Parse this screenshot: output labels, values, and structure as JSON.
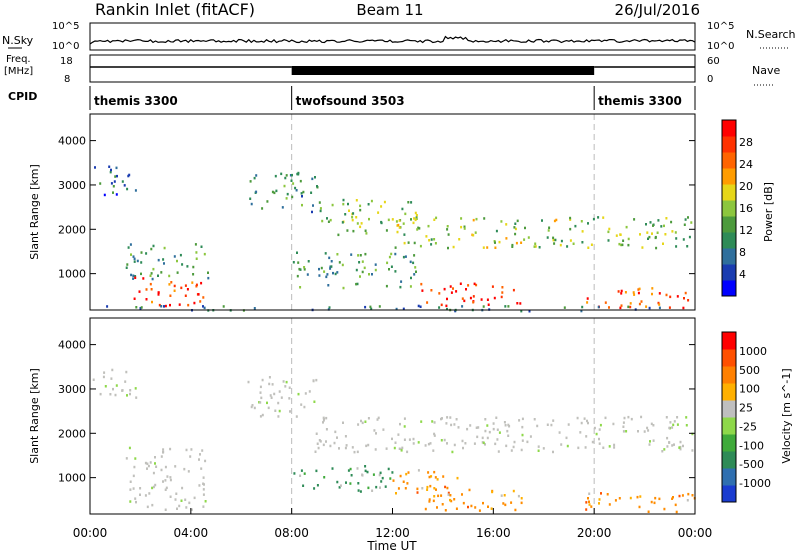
{
  "header": {
    "station": "Rankin Inlet (fitACF)",
    "beam": "Beam 11",
    "date": "26/Jul/2016"
  },
  "panels": {
    "nsky": {
      "left_label": "N.Sky",
      "right_label": "N.Search",
      "left_ticks": [
        "10^5",
        "10^0"
      ],
      "right_ticks": [
        "10^5",
        "10^0"
      ]
    },
    "freq": {
      "left_label_line1": "Freq.",
      "left_label_line2": "[MHz]",
      "right_label": "Nave",
      "left_ticks": [
        "18",
        "8"
      ],
      "right_ticks": [
        "60",
        "0"
      ]
    },
    "cpid": {
      "label": "CPID",
      "segments": [
        {
          "name": "themis 3300",
          "start_hour": 0,
          "end_hour": 8
        },
        {
          "name": "twofsound 3503",
          "start_hour": 8,
          "end_hour": 20
        },
        {
          "name": "themis 3300",
          "start_hour": 20,
          "end_hour": 24
        }
      ]
    }
  },
  "chart_data": [
    {
      "type": "heatmap",
      "title": "Power",
      "ylabel": "Slant Range [km]",
      "xlim": [
        0,
        24
      ],
      "ylim": [
        180,
        4600
      ],
      "yticks": [
        1000,
        2000,
        3000,
        4000
      ],
      "colorbar": {
        "label": "Power [dB]",
        "ticks": [
          "4",
          "8",
          "12",
          "16",
          "20",
          "24",
          "28"
        ],
        "colors": [
          "#0000ff",
          "#1a3cb0",
          "#2f6f9c",
          "#2e8b57",
          "#4c9a3c",
          "#8cc63e",
          "#e6d618",
          "#ff9c00",
          "#ff6400",
          "#ff3200",
          "#ff0000"
        ]
      },
      "regions": [
        {
          "t0": 0.1,
          "t1": 1.8,
          "r0": 2800,
          "r1": 3500,
          "level": 0.2
        },
        {
          "t0": 1.4,
          "t1": 4.8,
          "r0": 900,
          "r1": 1700,
          "level": 0.35
        },
        {
          "t0": 1.6,
          "t1": 4.6,
          "r0": 250,
          "r1": 950,
          "level": 0.9
        },
        {
          "t0": 6.2,
          "t1": 9.0,
          "r0": 2400,
          "r1": 3300,
          "level": 0.3
        },
        {
          "t0": 8.8,
          "t1": 13.0,
          "r0": 1900,
          "r1": 2700,
          "level": 0.45
        },
        {
          "t0": 12.0,
          "t1": 19.5,
          "r0": 1600,
          "r1": 2300,
          "level": 0.5
        },
        {
          "t0": 19.5,
          "t1": 24.0,
          "r0": 1600,
          "r1": 2300,
          "level": 0.45
        },
        {
          "t0": 8.0,
          "t1": 13.0,
          "r0": 700,
          "r1": 1500,
          "level": 0.35
        },
        {
          "t0": 13.0,
          "t1": 17.2,
          "r0": 300,
          "r1": 800,
          "level": 0.95
        },
        {
          "t0": 19.5,
          "t1": 24.0,
          "r0": 250,
          "r1": 700,
          "level": 0.85
        },
        {
          "t0": 0.0,
          "t1": 24.0,
          "r0": 180,
          "r1": 300,
          "level": 0.25
        }
      ]
    },
    {
      "type": "heatmap",
      "title": "Velocity",
      "ylabel": "Slant Range [km]",
      "xlabel": "Time UT",
      "xlim": [
        0,
        24
      ],
      "ylim": [
        180,
        4600
      ],
      "yticks": [
        1000,
        2000,
        3000,
        4000
      ],
      "xticks": [
        "00:00",
        "04:00",
        "08:00",
        "12:00",
        "16:00",
        "20:00",
        "00:00"
      ],
      "colorbar": {
        "label": "Velocity [m s^-1]",
        "ticks": [
          "1000",
          "500",
          "100",
          "25",
          "-25",
          "-100",
          "-500",
          "-1000"
        ],
        "colors": [
          "#1a3cd0",
          "#2f6fb0",
          "#2e8b57",
          "#3faa3a",
          "#8ed84a",
          "#bfbfbf",
          "#ffb000",
          "#ff8000",
          "#ff5000",
          "#ff0000"
        ]
      },
      "regions": [
        {
          "t0": 0.1,
          "t1": 1.8,
          "r0": 2800,
          "r1": 3500,
          "kind": "ground"
        },
        {
          "t0": 1.4,
          "t1": 4.6,
          "r0": 300,
          "r1": 1700,
          "kind": "ground"
        },
        {
          "t0": 6.2,
          "t1": 9.0,
          "r0": 2400,
          "r1": 3300,
          "kind": "ground"
        },
        {
          "t0": 8.8,
          "t1": 24.0,
          "r0": 1600,
          "r1": 2400,
          "kind": "ground"
        },
        {
          "t0": 8.0,
          "t1": 12.0,
          "r0": 700,
          "r1": 1300,
          "kind": "green"
        },
        {
          "t0": 12.0,
          "t1": 15.0,
          "r0": 600,
          "r1": 1200,
          "kind": "orange"
        },
        {
          "t0": 13.2,
          "t1": 17.5,
          "r0": 280,
          "r1": 800,
          "kind": "orange"
        },
        {
          "t0": 19.5,
          "t1": 24.0,
          "r0": 250,
          "r1": 700,
          "kind": "orange"
        }
      ]
    }
  ]
}
